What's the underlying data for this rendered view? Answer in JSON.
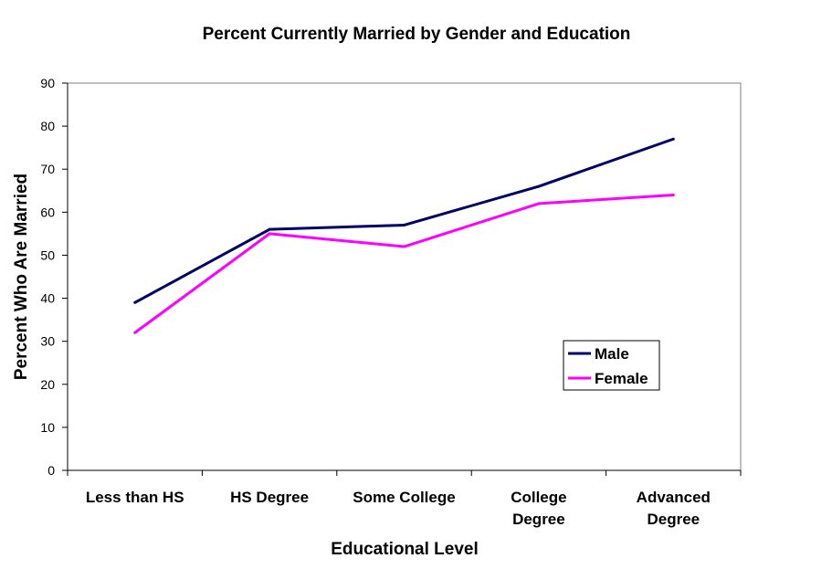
{
  "chart_data": {
    "type": "line",
    "title": "Percent Currently Married by Gender and Education",
    "xlabel": "Educational Level",
    "ylabel": "Percent Who Are Married",
    "ylim": [
      0,
      90
    ],
    "yticks": [
      0,
      10,
      20,
      30,
      40,
      50,
      60,
      70,
      80,
      90
    ],
    "categories": [
      [
        "Less than HS"
      ],
      [
        "HS Degree"
      ],
      [
        "Some College"
      ],
      [
        "College",
        "Degree"
      ],
      [
        "Advanced",
        "Degree"
      ]
    ],
    "series": [
      {
        "name": "Male",
        "color": "#000066",
        "values": [
          39,
          56,
          57,
          66,
          77
        ]
      },
      {
        "name": "Female",
        "color": "#ff00ff",
        "values": [
          32,
          55,
          52,
          62,
          64
        ]
      }
    ],
    "grid": false,
    "legend": {
      "position": "lower-right inside plot"
    }
  }
}
